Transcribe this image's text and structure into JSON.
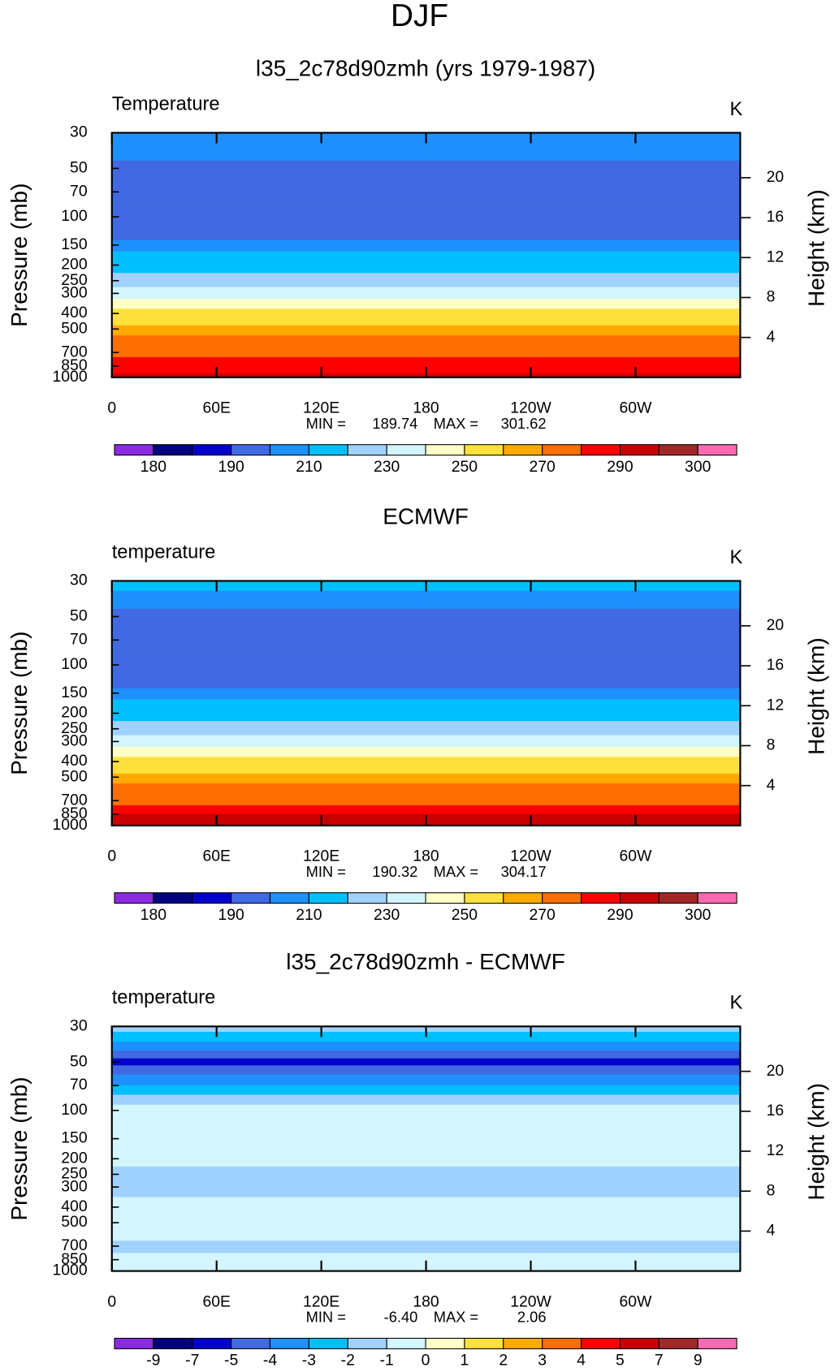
{
  "title": "DJF",
  "chart_data": [
    {
      "type": "contour",
      "title": "l35_2c78d90zmh (yrs 1979-1987)",
      "variable": "Temperature",
      "units": "K",
      "ylabel": "Pressure (mb)",
      "y2label": "Height (km)",
      "log_y": true,
      "xlim": [
        0,
        360
      ],
      "xticks": [
        0,
        {
          "value": 60,
          "label": "60E"
        },
        {
          "value": 120,
          "label": "120E"
        },
        180,
        {
          "value": 240,
          "label": "120W"
        },
        {
          "value": 300,
          "label": "60W"
        }
      ],
      "ylim": [
        1000,
        30
      ],
      "yticks": [
        30,
        50,
        70,
        100,
        150,
        200,
        250,
        300,
        400,
        500,
        700,
        850,
        1000
      ],
      "y2lim": [
        0,
        24.5
      ],
      "y2ticks": [
        4,
        8,
        12,
        16,
        20
      ],
      "min_label": "MIN =",
      "min": 189.74,
      "max_label": "MAX =",
      "max": 301.62,
      "profile": {
        "pressure": [
          30,
          40,
          50,
          70,
          100,
          130,
          150,
          180,
          200,
          250,
          300,
          350,
          400,
          450,
          500,
          600,
          700,
          800,
          900,
          1000
        ],
        "values": [
          208,
          205,
          199,
          196,
          195,
          199,
          205,
          212,
          215,
          225,
          235,
          245,
          253,
          258,
          263,
          270,
          276,
          283,
          289,
          292
        ]
      },
      "colorbar": {
        "levels": [
          180,
          185,
          190,
          200,
          210,
          220,
          230,
          240,
          250,
          260,
          270,
          280,
          290,
          295,
          300
        ],
        "label_stride": 2,
        "colors": [
          "#8a2be2",
          "#000080",
          "#0000cd",
          "#4169e1",
          "#1e90ff",
          "#00bfff",
          "#a0d2ff",
          "#d2f5ff",
          "#ffffc8",
          "#ffe13c",
          "#ffaa00",
          "#ff6e00",
          "#ff0000",
          "#c80000",
          "#a02828",
          "#ff69b4"
        ]
      }
    },
    {
      "type": "contour",
      "title": "ECMWF",
      "variable": "temperature",
      "units": "K",
      "ylabel": "Pressure (mb)",
      "y2label": "Height (km)",
      "log_y": true,
      "xlim": [
        0,
        360
      ],
      "xticks": [
        0,
        {
          "value": 60,
          "label": "60E"
        },
        {
          "value": 120,
          "label": "120E"
        },
        180,
        {
          "value": 240,
          "label": "120W"
        },
        {
          "value": 300,
          "label": "60W"
        }
      ],
      "ylim": [
        1000,
        30
      ],
      "yticks": [
        30,
        50,
        70,
        100,
        150,
        200,
        250,
        300,
        400,
        500,
        700,
        850,
        1000
      ],
      "y2lim": [
        0,
        24.5
      ],
      "y2ticks": [
        4,
        8,
        12,
        16,
        20
      ],
      "min_label": "MIN =",
      "min": 190.32,
      "max_label": "MAX =",
      "max": 304.17,
      "profile": {
        "pressure": [
          30,
          40,
          50,
          70,
          100,
          130,
          150,
          180,
          200,
          250,
          300,
          350,
          400,
          450,
          500,
          600,
          700,
          800,
          900,
          1000
        ],
        "values": [
          213,
          206,
          199,
          196,
          195,
          199,
          205,
          212,
          215,
          225,
          235,
          245,
          253,
          258,
          263,
          270,
          277,
          284,
          291,
          294
        ]
      },
      "colorbar": {
        "levels": [
          180,
          185,
          190,
          200,
          210,
          220,
          230,
          240,
          250,
          260,
          270,
          280,
          290,
          295,
          300
        ],
        "label_stride": 2,
        "colors": [
          "#8a2be2",
          "#000080",
          "#0000cd",
          "#4169e1",
          "#1e90ff",
          "#00bfff",
          "#a0d2ff",
          "#d2f5ff",
          "#ffffc8",
          "#ffe13c",
          "#ffaa00",
          "#ff6e00",
          "#ff0000",
          "#c80000",
          "#a02828",
          "#ff69b4"
        ]
      }
    },
    {
      "type": "contour",
      "title": "l35_2c78d90zmh - ECMWF",
      "variable": "temperature",
      "units": "K",
      "ylabel": "Pressure (mb)",
      "y2label": "Height (km)",
      "log_y": true,
      "xlim": [
        0,
        360
      ],
      "xticks": [
        0,
        {
          "value": 60,
          "label": "60E"
        },
        {
          "value": 120,
          "label": "120E"
        },
        180,
        {
          "value": 240,
          "label": "120W"
        },
        {
          "value": 300,
          "label": "60W"
        }
      ],
      "ylim": [
        1000,
        30
      ],
      "yticks": [
        30,
        50,
        70,
        100,
        150,
        200,
        250,
        300,
        400,
        500,
        700,
        850,
        1000
      ],
      "y2lim": [
        0,
        24.5
      ],
      "y2ticks": [
        4,
        8,
        12,
        16,
        20
      ],
      "min_label": "MIN =",
      "min": {
        "value": -6.4,
        "label": "-6.40"
      },
      "max_label": "MAX =",
      "max": 2.06,
      "profile": {
        "pressure": [
          30,
          35,
          40,
          45,
          50,
          55,
          65,
          75,
          85,
          100,
          150,
          200,
          250,
          300,
          400,
          500,
          600,
          700,
          850,
          1000
        ],
        "values": [
          -1.5,
          -2.5,
          -3.5,
          -4.5,
          -6,
          -4.5,
          -3.5,
          -2.5,
          -1.5,
          -0.5,
          -0.5,
          -0.8,
          -1.2,
          -1.1,
          -0.6,
          -0.5,
          -0.8,
          -1.3,
          -0.7,
          -0.4
        ]
      },
      "colorbar": {
        "levels": [
          -9,
          -7,
          -5,
          -4,
          -3,
          -2,
          -1,
          0,
          1,
          2,
          3,
          4,
          5,
          7,
          9
        ],
        "label_stride": 1,
        "colors": [
          "#8a2be2",
          "#000080",
          "#0000cd",
          "#4169e1",
          "#1e90ff",
          "#00bfff",
          "#a0d2ff",
          "#d2f5ff",
          "#ffffc8",
          "#ffe13c",
          "#ffaa00",
          "#ff6e00",
          "#ff0000",
          "#c80000",
          "#a02828",
          "#ff69b4"
        ]
      }
    }
  ]
}
